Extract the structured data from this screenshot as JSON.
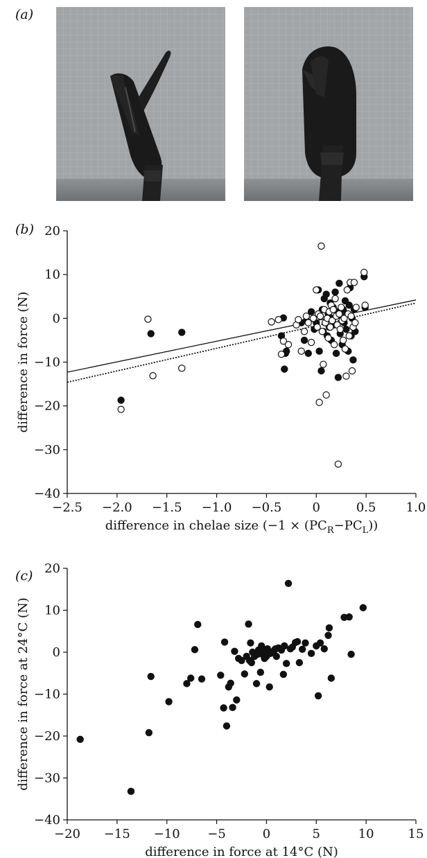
{
  "figure": {
    "panel_a_label": "(a)",
    "panel_b_label": "(b)",
    "panel_c_label": "(c)",
    "photos": [
      {
        "name": "photo-open-claw",
        "description_icon": "crab-claw-open-icon"
      },
      {
        "name": "photo-closed-claw",
        "description_icon": "crab-claw-closed-icon"
      }
    ],
    "colors": {
      "photo_background": "#9a9d9f",
      "claw": "#1a1a1a",
      "grid": "#b8bcbf",
      "marker_filled": "#111111",
      "marker_open": "#ffffff"
    }
  },
  "chart_data": [
    {
      "type": "scatter",
      "title": "",
      "xlabel": "difference in chelae size (−1 × (PC",
      "xlabel_sub1": "R",
      "xlabel_mid": "−PC",
      "xlabel_sub2": "L",
      "xlabel_end": "))",
      "ylabel": "difference in force (N)",
      "xlim": [
        -2.5,
        1.0
      ],
      "ylim": [
        -40,
        20
      ],
      "xticks": [
        -2.5,
        -2.0,
        -1.5,
        -1.0,
        -0.5,
        0,
        0.5,
        1.0
      ],
      "xtick_labels": [
        "−2.5",
        "−2.0",
        "−1.5",
        "−1.0",
        "−0.5",
        "0",
        "0.5",
        "1.0"
      ],
      "yticks": [
        20,
        10,
        0,
        -10,
        -20,
        -30,
        -40
      ],
      "ytick_labels": [
        "20",
        "10",
        "0",
        "−10",
        "−20",
        "−30",
        "−40"
      ],
      "grid": false,
      "lines": [
        {
          "style": "solid",
          "x": [
            -2.5,
            1.0
          ],
          "y": [
            -12.3,
            4.2
          ]
        },
        {
          "style": "dotted",
          "x": [
            -2.5,
            1.0
          ],
          "y": [
            -14.6,
            3.5
          ]
        }
      ],
      "series": [
        {
          "marker": "filled",
          "points": [
            [
              -1.96,
              -18.7
            ],
            [
              -1.66,
              -3.5
            ],
            [
              -1.35,
              -3.2
            ],
            [
              -0.35,
              -4.0
            ],
            [
              -0.33,
              0.1
            ],
            [
              -0.31,
              -8.0
            ],
            [
              -0.32,
              -11.6
            ],
            [
              -0.3,
              -7.5
            ],
            [
              -0.15,
              -1.0
            ],
            [
              -0.12,
              -5.0
            ],
            [
              -0.1,
              -0.5
            ],
            [
              -0.08,
              -8.0
            ],
            [
              -0.05,
              1.5
            ],
            [
              -0.02,
              -2.5
            ],
            [
              0.0,
              -1.0
            ],
            [
              0.02,
              6.5
            ],
            [
              0.03,
              -7.5
            ],
            [
              0.04,
              0.5
            ],
            [
              0.05,
              -12.0
            ],
            [
              0.06,
              2.0
            ],
            [
              0.07,
              -3.0
            ],
            [
              0.08,
              4.5
            ],
            [
              0.09,
              -1.0
            ],
            [
              0.1,
              5.5
            ],
            [
              0.11,
              -4.0
            ],
            [
              0.12,
              1.0
            ],
            [
              0.13,
              -2.0
            ],
            [
              0.14,
              3.5
            ],
            [
              0.15,
              -5.0
            ],
            [
              0.16,
              0.0
            ],
            [
              0.17,
              2.5
            ],
            [
              0.18,
              -1.5
            ],
            [
              0.19,
              6.0
            ],
            [
              0.2,
              -8.0
            ],
            [
              0.21,
              1.5
            ],
            [
              0.22,
              -13.5
            ],
            [
              0.23,
              8.0
            ],
            [
              0.24,
              -3.5
            ],
            [
              0.25,
              0.5
            ],
            [
              0.26,
              -6.0
            ],
            [
              0.27,
              2.0
            ],
            [
              0.28,
              -1.0
            ],
            [
              0.29,
              4.0
            ],
            [
              0.3,
              -2.5
            ],
            [
              0.31,
              1.0
            ],
            [
              0.32,
              -7.5
            ],
            [
              0.33,
              3.0
            ],
            [
              0.34,
              7.0
            ],
            [
              0.35,
              -4.0
            ],
            [
              0.36,
              0.0
            ],
            [
              0.37,
              -9.5
            ],
            [
              0.38,
              2.0
            ],
            [
              0.39,
              -3.0
            ],
            [
              0.48,
              9.5
            ],
            [
              0.49,
              2.5
            ]
          ]
        },
        {
          "marker": "open",
          "points": [
            [
              -1.96,
              -20.8
            ],
            [
              -1.69,
              -0.2
            ],
            [
              -1.64,
              -13.1
            ],
            [
              -1.35,
              -11.4
            ],
            [
              -0.45,
              -0.8
            ],
            [
              -0.38,
              -0.3
            ],
            [
              -0.35,
              -8.2
            ],
            [
              -0.33,
              -5.2
            ],
            [
              -0.28,
              -6.0
            ],
            [
              -0.2,
              -1.5
            ],
            [
              -0.18,
              -0.3
            ],
            [
              -0.15,
              -7.5
            ],
            [
              -0.12,
              -3.0
            ],
            [
              -0.1,
              0.5
            ],
            [
              -0.08,
              -1.0
            ],
            [
              -0.05,
              -5.5
            ],
            [
              -0.03,
              0.0
            ],
            [
              0.0,
              6.5
            ],
            [
              0.01,
              -2.0
            ],
            [
              0.02,
              1.0
            ],
            [
              0.03,
              -19.2
            ],
            [
              0.04,
              0.5
            ],
            [
              0.05,
              16.5
            ],
            [
              0.06,
              -3.0
            ],
            [
              0.07,
              -10.5
            ],
            [
              0.08,
              2.0
            ],
            [
              0.09,
              -1.0
            ],
            [
              0.1,
              -17.5
            ],
            [
              0.11,
              0.0
            ],
            [
              0.12,
              -4.5
            ],
            [
              0.13,
              1.5
            ],
            [
              0.14,
              -2.0
            ],
            [
              0.15,
              3.0
            ],
            [
              0.16,
              -0.5
            ],
            [
              0.17,
              2.0
            ],
            [
              0.18,
              -6.0
            ],
            [
              0.19,
              4.5
            ],
            [
              0.2,
              0.5
            ],
            [
              0.21,
              -1.5
            ],
            [
              0.22,
              -33.3
            ],
            [
              0.23,
              1.0
            ],
            [
              0.24,
              -2.5
            ],
            [
              0.25,
              2.5
            ],
            [
              0.26,
              -0.5
            ],
            [
              0.27,
              -5.0
            ],
            [
              0.28,
              0.0
            ],
            [
              0.29,
              -7.0
            ],
            [
              0.3,
              -13.2
            ],
            [
              0.31,
              6.5
            ],
            [
              0.32,
              1.0
            ],
            [
              0.33,
              -4.0
            ],
            [
              0.34,
              8.2
            ],
            [
              0.35,
              0.5
            ],
            [
              0.36,
              -12.0
            ],
            [
              0.37,
              -2.0
            ],
            [
              0.38,
              8.2
            ],
            [
              0.39,
              -1.0
            ],
            [
              0.4,
              2.5
            ],
            [
              0.48,
              10.5
            ],
            [
              0.49,
              3.0
            ]
          ]
        }
      ]
    },
    {
      "type": "scatter",
      "title": "",
      "xlabel": "difference in force at 14°C (N)",
      "ylabel": "difference in force at 24°C (N)",
      "xlim": [
        -20,
        15
      ],
      "ylim": [
        -40,
        20
      ],
      "xticks": [
        -20,
        -15,
        -10,
        -5,
        0,
        5,
        10,
        15
      ],
      "xtick_labels": [
        "−20",
        "−15",
        "−10",
        "−5",
        "0",
        "5",
        "10",
        "15"
      ],
      "yticks": [
        20,
        10,
        0,
        -10,
        -20,
        -30,
        -40
      ],
      "ytick_labels": [
        "20",
        "10",
        "0",
        "−10",
        "−20",
        "−30",
        "−40"
      ],
      "grid": false,
      "series": [
        {
          "marker": "filled",
          "points": [
            [
              -18.7,
              -20.8
            ],
            [
              -13.6,
              -33.2
            ],
            [
              -11.8,
              -19.2
            ],
            [
              -11.6,
              -5.8
            ],
            [
              -9.8,
              -11.8
            ],
            [
              -8.0,
              -7.5
            ],
            [
              -7.6,
              -6.2
            ],
            [
              -7.2,
              0.6
            ],
            [
              -6.9,
              6.6
            ],
            [
              -6.5,
              -6.4
            ],
            [
              -4.6,
              -5.5
            ],
            [
              -4.3,
              -13.3
            ],
            [
              -4.2,
              2.4
            ],
            [
              -4.0,
              -17.6
            ],
            [
              -3.8,
              -8.3
            ],
            [
              -3.6,
              -7.4
            ],
            [
              -3.4,
              -13.2
            ],
            [
              -3.0,
              -11.4
            ],
            [
              -3.2,
              0.2
            ],
            [
              -2.8,
              -1.5
            ],
            [
              -2.5,
              -2.0
            ],
            [
              -2.2,
              -5.2
            ],
            [
              -2.0,
              -1.0
            ],
            [
              -1.8,
              6.7
            ],
            [
              -1.6,
              2.2
            ],
            [
              -1.5,
              -2.5
            ],
            [
              -1.4,
              0.0
            ],
            [
              -1.2,
              -1.0
            ],
            [
              -1.0,
              -7.5
            ],
            [
              -0.9,
              -0.5
            ],
            [
              -0.8,
              0.5
            ],
            [
              -0.6,
              -4.8
            ],
            [
              -0.5,
              1.5
            ],
            [
              -0.4,
              -0.5
            ],
            [
              -0.3,
              0.2
            ],
            [
              -0.2,
              -1.5
            ],
            [
              -0.1,
              0.5
            ],
            [
              0.0,
              -1.0
            ],
            [
              0.1,
              0.8
            ],
            [
              0.3,
              -8.3
            ],
            [
              0.4,
              -0.3
            ],
            [
              0.6,
              0.0
            ],
            [
              0.8,
              0.5
            ],
            [
              1.0,
              -1.0
            ],
            [
              1.2,
              1.0
            ],
            [
              1.5,
              0.5
            ],
            [
              1.7,
              -5.3
            ],
            [
              1.8,
              1.5
            ],
            [
              2.0,
              -2.7
            ],
            [
              2.2,
              16.4
            ],
            [
              2.4,
              0.8
            ],
            [
              2.6,
              1.2
            ],
            [
              2.9,
              2.3
            ],
            [
              3.1,
              2.5
            ],
            [
              3.3,
              -2.5
            ],
            [
              3.6,
              0.7
            ],
            [
              3.9,
              2.2
            ],
            [
              4.5,
              -0.3
            ],
            [
              5.0,
              1.5
            ],
            [
              5.2,
              -10.4
            ],
            [
              5.4,
              2.2
            ],
            [
              5.8,
              0.8
            ],
            [
              6.2,
              4.0
            ],
            [
              6.3,
              5.8
            ],
            [
              6.5,
              -6.2
            ],
            [
              7.8,
              8.3
            ],
            [
              8.3,
              8.4
            ],
            [
              8.5,
              -0.5
            ],
            [
              9.7,
              10.6
            ],
            [
              0.9,
              0.8
            ],
            [
              -1.7,
              -2.0
            ]
          ]
        }
      ]
    }
  ]
}
